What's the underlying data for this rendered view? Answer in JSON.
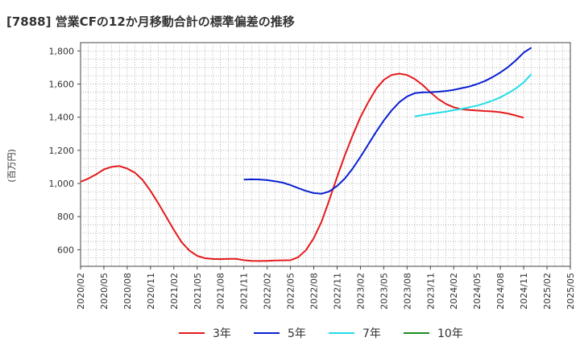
{
  "chart_data": {
    "type": "line",
    "title": "[7888]  営業CFの12か月移動合計の標準偏差の推移",
    "ylabel": "(百万円)",
    "xlabel": "",
    "grid": true,
    "legend_position": "bottom",
    "xlim": [
      "2020-02",
      "2025-05"
    ],
    "ylim": [
      500,
      1850
    ],
    "yticks": [
      600,
      800,
      1000,
      1200,
      1400,
      1600,
      1800
    ],
    "yticklabels": [
      "600",
      "800",
      "1,000",
      "1,200",
      "1,400",
      "1,600",
      "1,800"
    ],
    "xticklabels": [
      "2020/02",
      "2020/05",
      "2020/08",
      "2020/11",
      "2021/02",
      "2021/05",
      "2021/08",
      "2021/11",
      "2022/02",
      "2022/05",
      "2022/08",
      "2022/11",
      "2023/02",
      "2023/05",
      "2023/08",
      "2023/11",
      "2024/02",
      "2024/05",
      "2024/08",
      "2024/11",
      "2025/02",
      "2025/05"
    ],
    "series": [
      {
        "name": "3年",
        "color": "#e31a1c",
        "points": [
          [
            "2020-02",
            1010
          ],
          [
            "2020-03",
            1030
          ],
          [
            "2020-04",
            1055
          ],
          [
            "2020-05",
            1085
          ],
          [
            "2020-06",
            1100
          ],
          [
            "2020-07",
            1105
          ],
          [
            "2020-08",
            1090
          ],
          [
            "2020-09",
            1065
          ],
          [
            "2020-10",
            1020
          ],
          [
            "2020-11",
            955
          ],
          [
            "2020-12",
            880
          ],
          [
            "2021-01",
            800
          ],
          [
            "2021-02",
            720
          ],
          [
            "2021-03",
            645
          ],
          [
            "2021-04",
            595
          ],
          [
            "2021-05",
            563
          ],
          [
            "2021-06",
            549
          ],
          [
            "2021-07",
            544
          ],
          [
            "2021-08",
            543
          ],
          [
            "2021-09",
            545
          ],
          [
            "2021-10",
            545
          ],
          [
            "2021-11",
            537
          ],
          [
            "2021-12",
            533
          ],
          [
            "2022-01",
            532
          ],
          [
            "2022-02",
            533
          ],
          [
            "2022-03",
            535
          ],
          [
            "2022-04",
            536
          ],
          [
            "2022-05",
            537
          ],
          [
            "2022-06",
            555
          ],
          [
            "2022-07",
            598
          ],
          [
            "2022-08",
            670
          ],
          [
            "2022-09",
            770
          ],
          [
            "2022-10",
            900
          ],
          [
            "2022-11",
            1040
          ],
          [
            "2022-12",
            1170
          ],
          [
            "2023-01",
            1290
          ],
          [
            "2023-02",
            1400
          ],
          [
            "2023-03",
            1490
          ],
          [
            "2023-04",
            1570
          ],
          [
            "2023-05",
            1625
          ],
          [
            "2023-06",
            1655
          ],
          [
            "2023-07",
            1663
          ],
          [
            "2023-08",
            1655
          ],
          [
            "2023-09",
            1630
          ],
          [
            "2023-10",
            1595
          ],
          [
            "2023-11",
            1550
          ],
          [
            "2023-12",
            1510
          ],
          [
            "2024-01",
            1480
          ],
          [
            "2024-02",
            1460
          ],
          [
            "2024-03",
            1448
          ],
          [
            "2024-04",
            1443
          ],
          [
            "2024-05",
            1440
          ],
          [
            "2024-06",
            1437
          ],
          [
            "2024-07",
            1435
          ],
          [
            "2024-08",
            1430
          ],
          [
            "2024-09",
            1422
          ],
          [
            "2024-10",
            1410
          ],
          [
            "2024-11",
            1397
          ]
        ]
      },
      {
        "name": "5年",
        "color": "#0a1fd1",
        "points": [
          [
            "2021-11",
            1023
          ],
          [
            "2021-12",
            1025
          ],
          [
            "2022-01",
            1024
          ],
          [
            "2022-02",
            1020
          ],
          [
            "2022-03",
            1014
          ],
          [
            "2022-04",
            1005
          ],
          [
            "2022-05",
            990
          ],
          [
            "2022-06",
            972
          ],
          [
            "2022-07",
            955
          ],
          [
            "2022-08",
            942
          ],
          [
            "2022-09",
            938
          ],
          [
            "2022-10",
            952
          ],
          [
            "2022-11",
            985
          ],
          [
            "2022-12",
            1030
          ],
          [
            "2023-01",
            1090
          ],
          [
            "2023-02",
            1160
          ],
          [
            "2023-03",
            1235
          ],
          [
            "2023-04",
            1310
          ],
          [
            "2023-05",
            1380
          ],
          [
            "2023-06",
            1440
          ],
          [
            "2023-07",
            1490
          ],
          [
            "2023-08",
            1525
          ],
          [
            "2023-09",
            1545
          ],
          [
            "2023-10",
            1550
          ],
          [
            "2023-11",
            1551
          ],
          [
            "2023-12",
            1554
          ],
          [
            "2024-01",
            1558
          ],
          [
            "2024-02",
            1565
          ],
          [
            "2024-03",
            1575
          ],
          [
            "2024-04",
            1585
          ],
          [
            "2024-05",
            1600
          ],
          [
            "2024-06",
            1618
          ],
          [
            "2024-07",
            1642
          ],
          [
            "2024-08",
            1670
          ],
          [
            "2024-09",
            1703
          ],
          [
            "2024-10",
            1743
          ],
          [
            "2024-11",
            1790
          ],
          [
            "2024-12",
            1820
          ]
        ]
      },
      {
        "name": "7年",
        "color": "#22dde8",
        "points": [
          [
            "2023-09",
            1405
          ],
          [
            "2023-10",
            1413
          ],
          [
            "2023-11",
            1420
          ],
          [
            "2023-12",
            1427
          ],
          [
            "2024-01",
            1434
          ],
          [
            "2024-02",
            1442
          ],
          [
            "2024-03",
            1450
          ],
          [
            "2024-04",
            1460
          ],
          [
            "2024-05",
            1470
          ],
          [
            "2024-06",
            1484
          ],
          [
            "2024-07",
            1500
          ],
          [
            "2024-08",
            1520
          ],
          [
            "2024-09",
            1545
          ],
          [
            "2024-10",
            1573
          ],
          [
            "2024-11",
            1610
          ],
          [
            "2024-12",
            1660
          ]
        ]
      },
      {
        "name": "10年",
        "color": "#1e8c1e",
        "points": []
      }
    ]
  }
}
